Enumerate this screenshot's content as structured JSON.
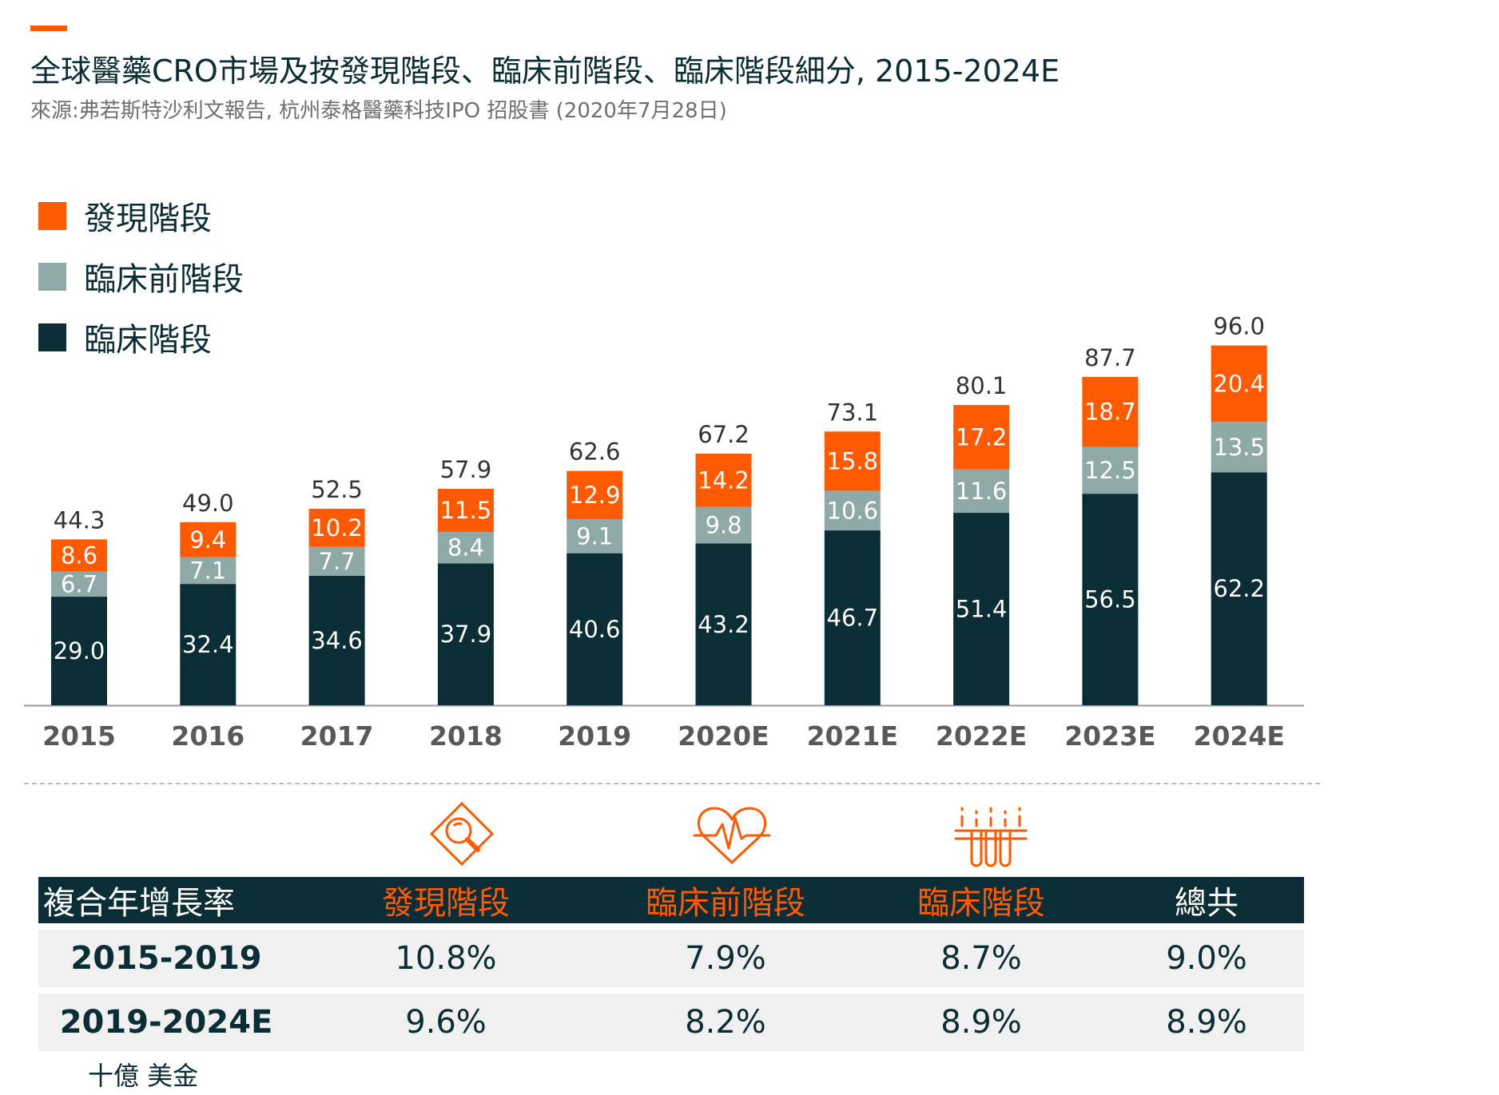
{
  "header": {
    "title": "全球醫藥CRO市場及按發現階段、臨床前階段、臨床階段細分, 2015-2024E",
    "source": "來源:弗若斯特沙利文報告, 杭州泰格醫藥科技IPO 招股書 (2020年7月28日)"
  },
  "legend": [
    {
      "label": "發現階段",
      "color": "#ff5a00"
    },
    {
      "label": "臨床前階段",
      "color": "#8fa9a8"
    },
    {
      "label": "臨床階段",
      "color": "#0b2d35"
    }
  ],
  "chart_data": {
    "type": "bar",
    "stacked": true,
    "categories": [
      "2015",
      "2016",
      "2017",
      "2018",
      "2019",
      "2020E",
      "2021E",
      "2022E",
      "2023E",
      "2024E"
    ],
    "series": [
      {
        "name": "臨床階段",
        "color": "#0b2d35",
        "values": [
          29.0,
          32.4,
          34.6,
          37.9,
          40.6,
          43.2,
          46.7,
          51.4,
          56.5,
          62.2
        ]
      },
      {
        "name": "臨床前階段",
        "color": "#8fa9a8",
        "values": [
          6.7,
          7.1,
          7.7,
          8.4,
          9.1,
          9.8,
          10.6,
          11.6,
          12.5,
          13.5
        ]
      },
      {
        "name": "發現階段",
        "color": "#ff5a00",
        "values": [
          8.6,
          9.4,
          10.2,
          11.5,
          12.9,
          14.2,
          15.8,
          17.2,
          18.7,
          20.4
        ]
      }
    ],
    "totals": [
      44.3,
      49.0,
      52.5,
      57.9,
      62.6,
      67.2,
      73.1,
      80.1,
      87.7,
      96.0
    ],
    "ylim": [
      0,
      96.0
    ],
    "unit": "十億 美金",
    "legend_position": "top-left",
    "grid": false
  },
  "icons": [
    {
      "name": "search-diamond-icon",
      "color": "#ff5a00"
    },
    {
      "name": "heartbeat-icon",
      "color": "#ff5a00"
    },
    {
      "name": "test-tubes-icon",
      "color": "#ff5a00"
    }
  ],
  "cagr_table": {
    "headers": [
      "複合年增長率",
      "發現階段",
      "臨床前階段",
      "臨床階段",
      "總共"
    ],
    "rows": [
      [
        "2015-2019",
        "10.8%",
        "7.9%",
        "8.7%",
        "9.0%"
      ],
      [
        "2019-2024E",
        "9.6%",
        "8.2%",
        "8.9%",
        "8.9%"
      ]
    ]
  },
  "unit_label": "十億 美金"
}
